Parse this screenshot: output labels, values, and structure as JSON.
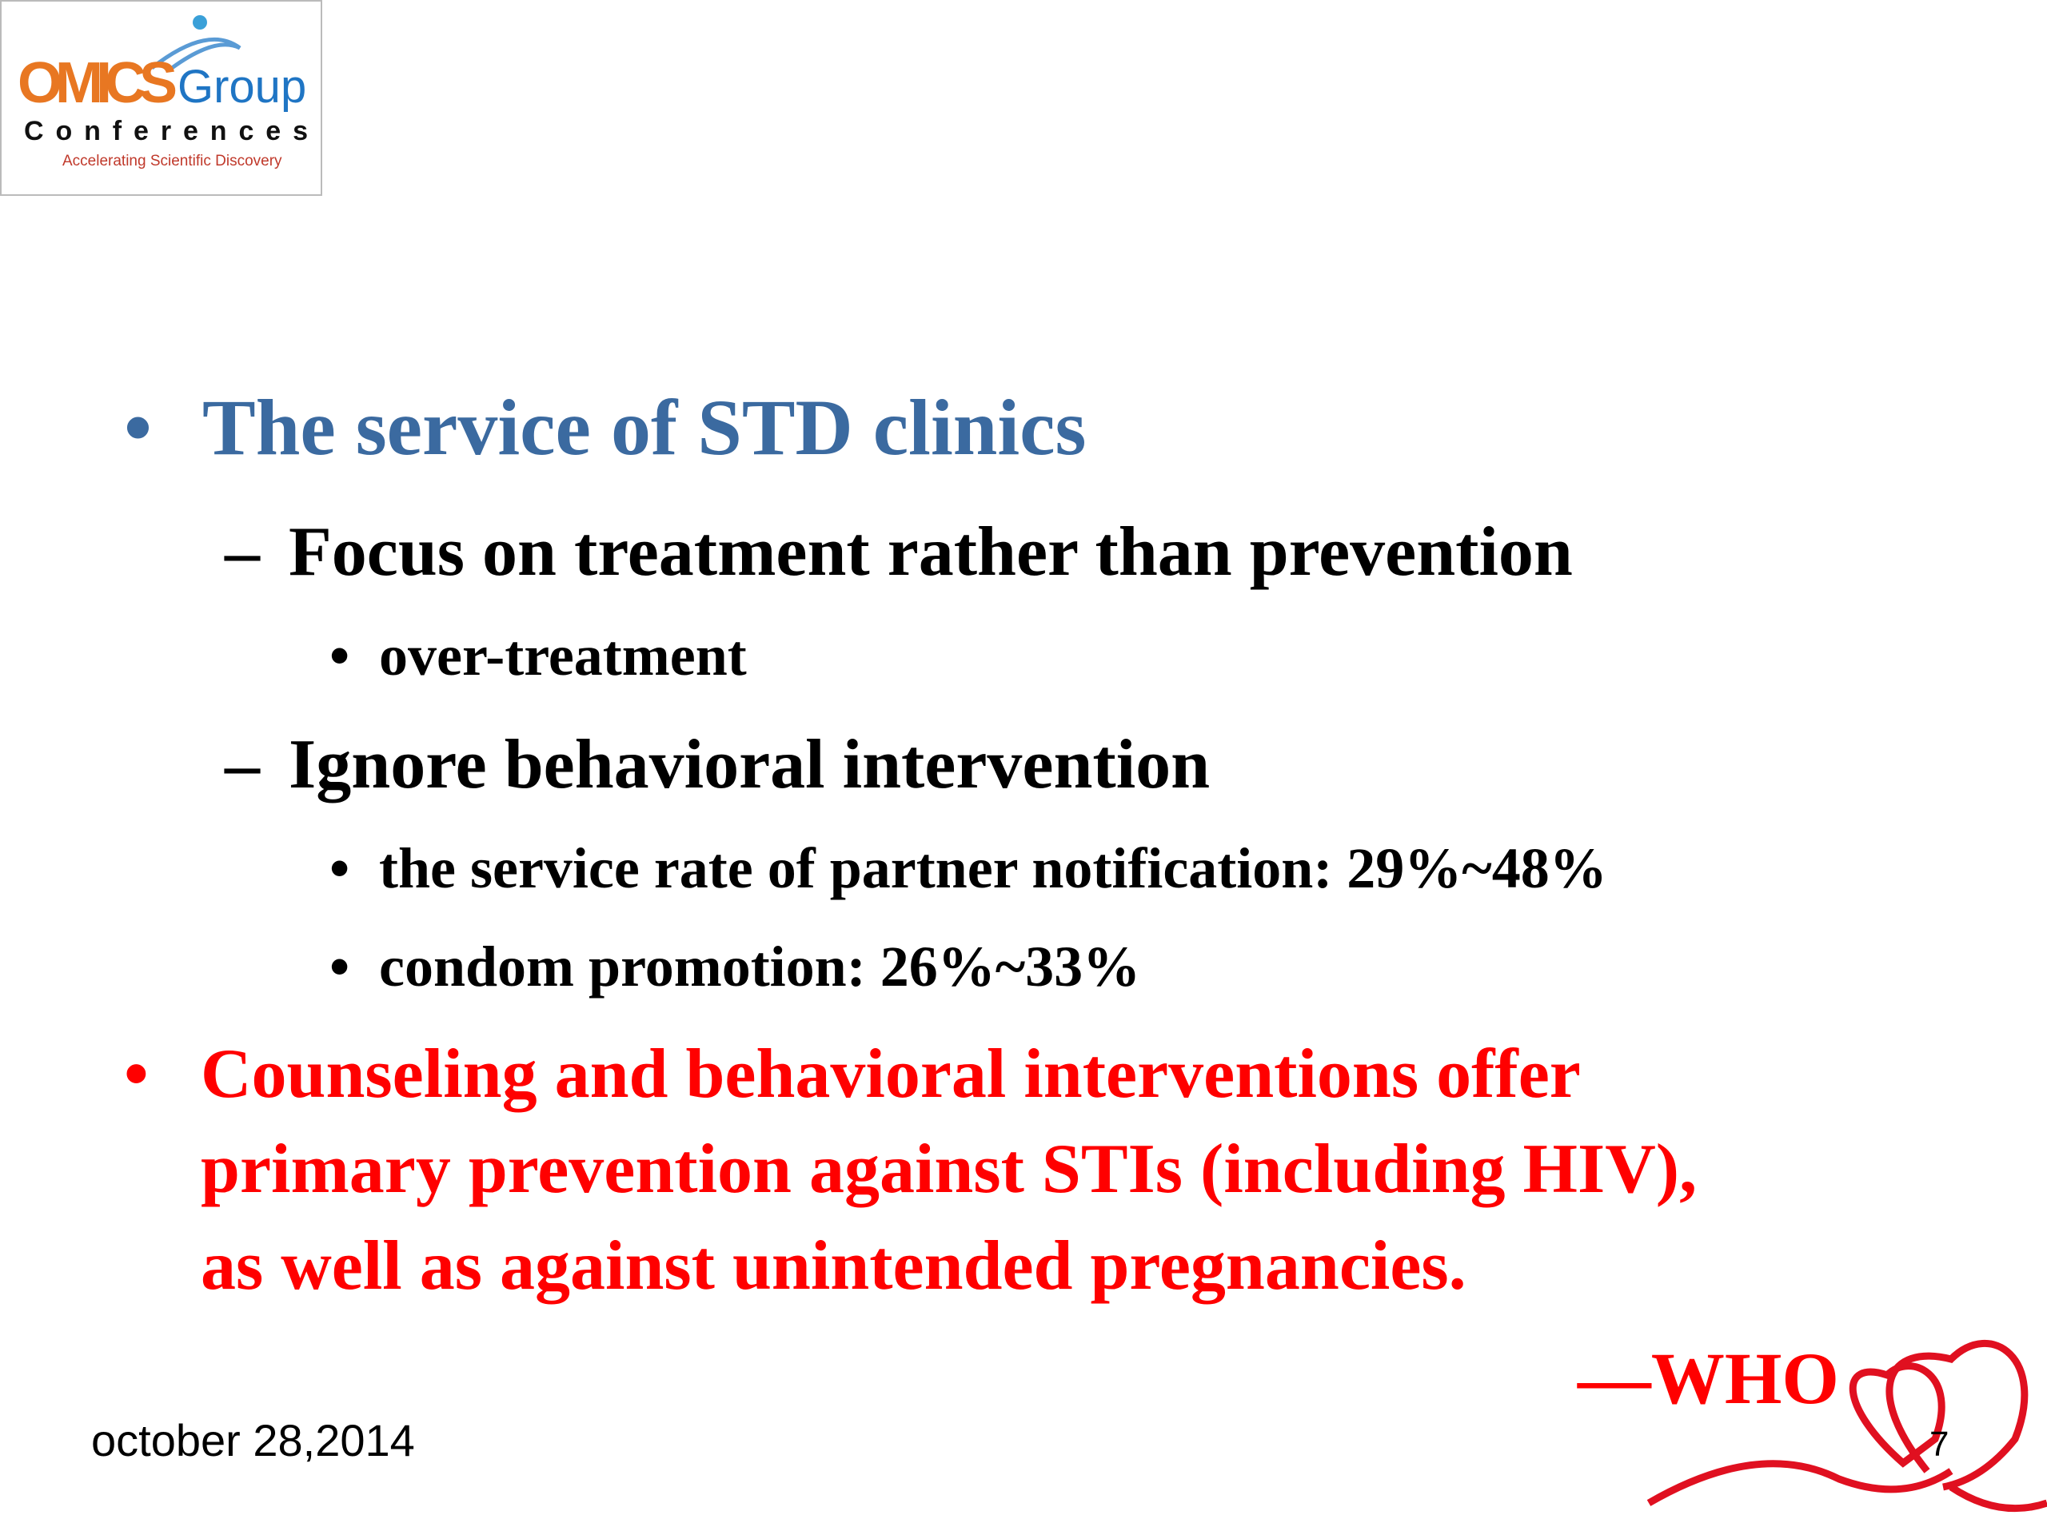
{
  "logo": {
    "brand_a": "OMICS",
    "brand_b": "Group",
    "line2": "Conferences",
    "tagline": "Accelerating Scientific Discovery"
  },
  "bullets": [
    {
      "text": "The service of STD clinics",
      "children": [
        {
          "text": "Focus on treatment rather than prevention",
          "children": [
            {
              "text": "over-treatment"
            }
          ]
        },
        {
          "text": "Ignore behavioral intervention",
          "children": [
            {
              "text": "the service rate of partner notification: 29%~48%"
            },
            {
              "text": "condom promotion: 26%~33%"
            }
          ]
        }
      ]
    },
    {
      "lines": [
        "Counseling and behavioral interventions offer",
        "primary prevention against STIs (including HIV),",
        "as well as against unintended pregnancies."
      ]
    }
  ],
  "attribution": "—WHO",
  "footer": {
    "date": "october 28,2014",
    "page": "7"
  }
}
